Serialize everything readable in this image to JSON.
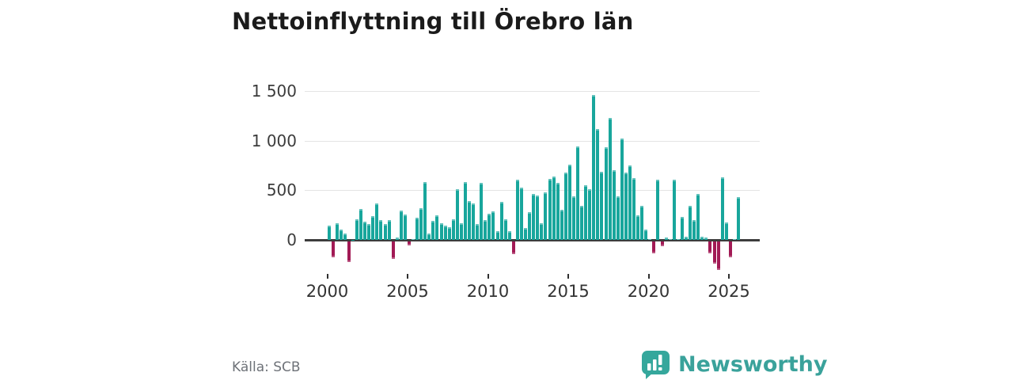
{
  "title": "Nettoinflyttning till Örebro län",
  "source": "Källa: SCB",
  "brand": {
    "name": "Newsworthy",
    "icon": "bar-chart-speech-bubble-icon"
  },
  "colors": {
    "positive_bar": "#18a69c",
    "negative_bar": "#a21a55",
    "axis_line": "#3d3d3d",
    "gridline": "#e4e4e4",
    "tick_text": "#3c3c3c",
    "muted_text": "#6e7278",
    "brand_teal": "#3aa29b",
    "title_text": "#1b1b1b"
  },
  "chart_data": {
    "type": "bar",
    "title": "Nettoinflyttning till Örebro län",
    "xlabel": "",
    "ylabel": "",
    "frequency": "quarterly",
    "start_period": "2000-Q1",
    "end_period": "2025-Q3",
    "x_tick_labels": [
      "2000",
      "2005",
      "2010",
      "2015",
      "2020",
      "2025"
    ],
    "y_ticks": [
      0,
      500,
      1000,
      1500
    ],
    "y_tick_labels": [
      "0",
      "500",
      "1 000",
      "1 500"
    ],
    "ylim": [
      -350,
      1620
    ],
    "grid": "horizontal-only",
    "legend": "none",
    "values": [
      140,
      -160,
      165,
      105,
      65,
      -210,
      0,
      205,
      315,
      185,
      160,
      240,
      365,
      200,
      160,
      200,
      -180,
      25,
      295,
      255,
      -40,
      10,
      220,
      320,
      580,
      65,
      190,
      250,
      170,
      145,
      130,
      210,
      510,
      170,
      580,
      390,
      370,
      160,
      575,
      200,
      260,
      290,
      90,
      385,
      210,
      90,
      -135,
      605,
      530,
      120,
      280,
      460,
      450,
      170,
      480,
      615,
      640,
      575,
      300,
      675,
      755,
      435,
      940,
      345,
      550,
      510,
      1460,
      1120,
      690,
      930,
      1225,
      700,
      435,
      1020,
      675,
      750,
      620,
      245,
      345,
      105,
      5,
      -120,
      605,
      -55,
      25,
      5,
      605,
      5,
      235,
      30,
      345,
      200,
      465,
      30,
      25,
      -120,
      -225,
      -295,
      630,
      175,
      -160,
      5,
      430
    ]
  }
}
